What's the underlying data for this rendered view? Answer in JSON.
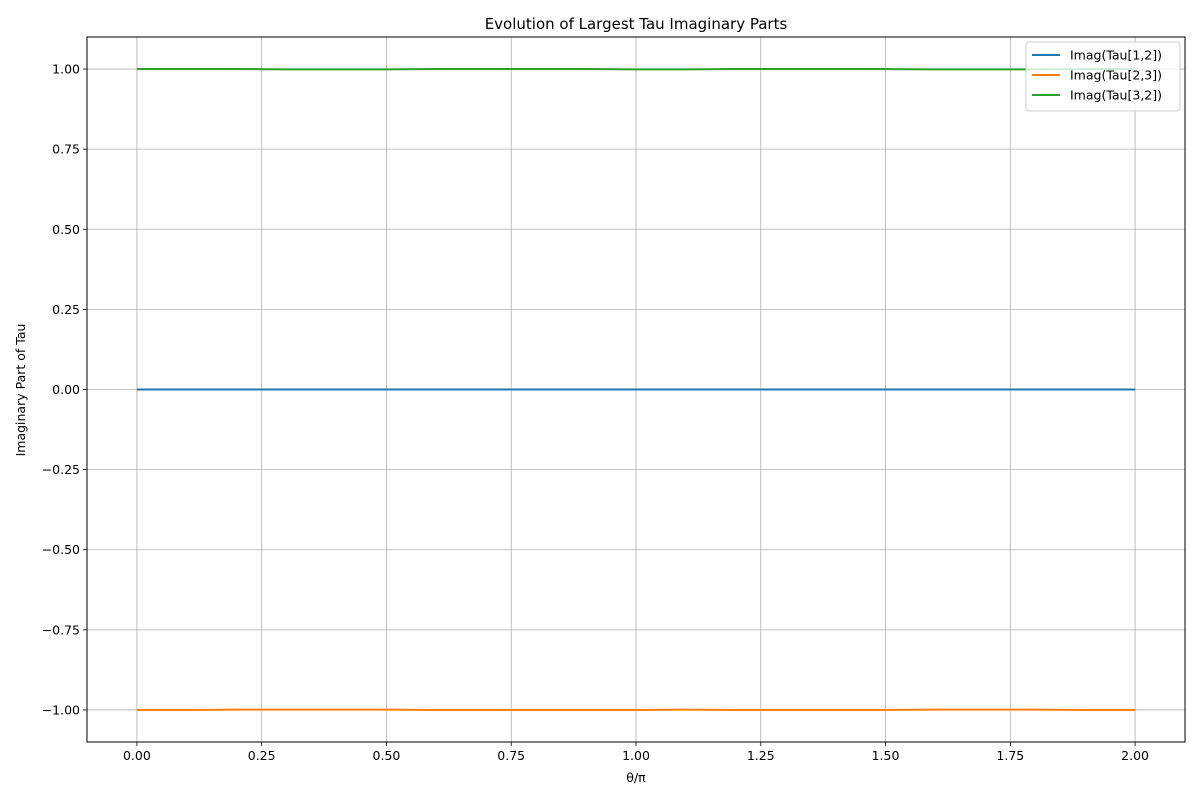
{
  "chart_data": {
    "type": "line",
    "title": "Evolution of Largest Tau Imaginary Parts",
    "xlabel": "θ/π",
    "ylabel": "Imaginary Part of Tau",
    "xlim": [
      -0.1,
      2.1
    ],
    "ylim": [
      -1.1,
      1.1
    ],
    "x_ticks": [
      0.0,
      0.25,
      0.5,
      0.75,
      1.0,
      1.25,
      1.5,
      1.75,
      2.0
    ],
    "x_tick_labels": [
      "0.00",
      "0.25",
      "0.50",
      "0.75",
      "1.00",
      "1.25",
      "1.50",
      "1.75",
      "2.00"
    ],
    "y_ticks": [
      -1.0,
      -0.75,
      -0.5,
      -0.25,
      0.0,
      0.25,
      0.5,
      0.75,
      1.0
    ],
    "y_tick_labels": [
      "−1.00",
      "−0.75",
      "−0.50",
      "−0.25",
      "0.00",
      "0.25",
      "0.50",
      "0.75",
      "1.00"
    ],
    "grid": true,
    "legend_position": "top-right",
    "x": [
      0.0,
      0.1,
      0.2,
      0.3,
      0.4,
      0.5,
      0.6,
      0.7,
      0.8,
      0.9,
      1.0,
      1.1,
      1.2,
      1.3,
      1.4,
      1.5,
      1.6,
      1.7,
      1.8,
      1.9,
      2.0
    ],
    "series": [
      {
        "name": "Imag(Tau[1,2])",
        "color": "#1f77b4",
        "values": [
          0.0,
          0.0,
          0.0,
          0.0,
          0.0,
          0.0,
          0.0,
          0.0,
          0.0,
          0.0,
          0.0,
          0.0,
          0.0,
          0.0,
          0.0,
          0.0,
          0.0,
          0.0,
          0.0,
          0.0,
          0.0
        ]
      },
      {
        "name": "Imag(Tau[2,3])",
        "color": "#ff7f0e",
        "values": [
          -1.0,
          -1.0,
          -0.999,
          -0.999,
          -0.999,
          -0.999,
          -1.0,
          -1.0,
          -1.0,
          -1.0,
          -1.0,
          -0.999,
          -1.0,
          -1.0,
          -1.0,
          -1.0,
          -0.999,
          -0.999,
          -0.999,
          -1.0,
          -1.0
        ]
      },
      {
        "name": "Imag(Tau[3,2])",
        "color": "#2ca02c",
        "values": [
          1.0,
          1.0,
          1.0,
          0.999,
          0.999,
          0.999,
          1.0,
          1.0,
          1.0,
          1.0,
          0.999,
          0.999,
          1.0,
          1.0,
          1.0,
          1.0,
          0.999,
          0.999,
          0.999,
          1.0,
          1.0
        ]
      }
    ]
  }
}
